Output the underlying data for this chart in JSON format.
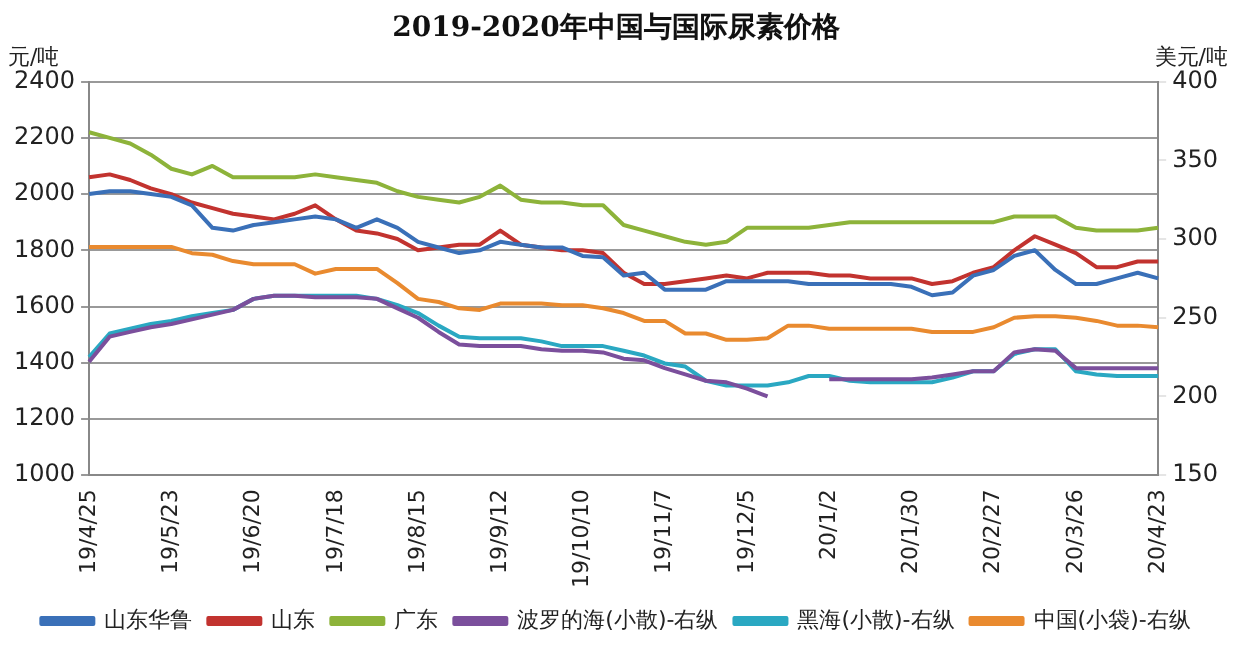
{
  "chart_data": {
    "type": "line",
    "title": "2019-2020年中国与国际尿素价格",
    "ylabel": "元/吨",
    "y2label": "美元/吨",
    "categories": [
      "19/4/25",
      null,
      null,
      null,
      "19/5/23",
      null,
      null,
      null,
      "19/6/20",
      null,
      null,
      null,
      "19/7/18",
      null,
      null,
      null,
      "19/8/15",
      null,
      null,
      null,
      "19/9/12",
      null,
      null,
      null,
      "19/10/10",
      null,
      null,
      null,
      "19/11/7",
      null,
      null,
      null,
      "19/12/5",
      null,
      null,
      null,
      "20/1/2",
      null,
      null,
      null,
      "20/1/30",
      null,
      null,
      null,
      "20/2/27",
      null,
      null,
      null,
      "20/3/26",
      null,
      null,
      null,
      "20/4/23"
    ],
    "series": [
      {
        "name": "山东华鲁",
        "color": "#3a70b8",
        "values": [
          2000,
          2010,
          2010,
          2000,
          1990,
          1960,
          1880,
          1870,
          1890,
          1900,
          1910,
          1920,
          1910,
          1880,
          1910,
          1880,
          1830,
          1810,
          1790,
          1800,
          1830,
          1820,
          1810,
          1810,
          1780,
          1775,
          1710,
          1720,
          1660,
          1660,
          1660,
          1690,
          1690,
          1690,
          1690,
          1680,
          1680,
          1680,
          1680,
          1680,
          1670,
          1640,
          1650,
          1710,
          1730,
          1780,
          1800,
          1730,
          1680,
          1680,
          1700,
          1720,
          1700
        ]
      },
      {
        "name": "山东",
        "color": "#c2332f",
        "values": [
          2060,
          2070,
          2050,
          2020,
          2000,
          1970,
          1950,
          1930,
          1920,
          1910,
          1930,
          1960,
          1910,
          1870,
          1860,
          1840,
          1800,
          1810,
          1820,
          1820,
          1870,
          1820,
          1810,
          1800,
          1800,
          1790,
          1720,
          1680,
          1680,
          1690,
          1700,
          1710,
          1700,
          1720,
          1720,
          1720,
          1710,
          1710,
          1700,
          1700,
          1700,
          1680,
          1690,
          1720,
          1740,
          1800,
          1850,
          1820,
          1790,
          1740,
          1740,
          1760,
          1760
        ]
      },
      {
        "name": "广东",
        "color": "#8db33a",
        "values": [
          2220,
          2200,
          2180,
          2140,
          2090,
          2070,
          2100,
          2060,
          2060,
          2060,
          2060,
          2070,
          2060,
          2050,
          2040,
          2010,
          1990,
          1980,
          1970,
          1990,
          2030,
          1980,
          1970,
          1970,
          1960,
          1960,
          1890,
          1870,
          1850,
          1830,
          1820,
          1830,
          1880,
          1880,
          1880,
          1880,
          1890,
          1900,
          1900,
          1900,
          1900,
          1900,
          1900,
          1900,
          1900,
          1920,
          1920,
          1920,
          1880,
          1870,
          1870,
          1870,
          1880
        ]
      },
      {
        "name": "波罗的海(小散)-右纵",
        "color": "#7b4f9c",
        "axis": "y2",
        "values": [
          222,
          238,
          241,
          244,
          246,
          249,
          252,
          255,
          262,
          264,
          264,
          263,
          263,
          263,
          262,
          256,
          250,
          241,
          233,
          232,
          232,
          232,
          230,
          229,
          229,
          228,
          224,
          223,
          218,
          214,
          210,
          209,
          205,
          200,
          null,
          null,
          211,
          211,
          211,
          211,
          211,
          212,
          214,
          216,
          216,
          228,
          230,
          229,
          218,
          218,
          218,
          218,
          218
        ]
      },
      {
        "name": "黑海(小散)-右纵",
        "color": "#2aa8c2",
        "axis": "y2",
        "values": [
          225,
          240,
          243,
          246,
          248,
          251,
          253,
          255,
          262,
          264,
          264,
          264,
          264,
          264,
          262,
          258,
          253,
          245,
          238,
          237,
          237,
          237,
          235,
          232,
          232,
          232,
          229,
          226,
          221,
          219,
          210,
          207,
          207,
          207,
          209,
          213,
          213,
          210,
          209,
          209,
          209,
          209,
          212,
          216,
          216,
          227,
          230,
          230,
          216,
          214,
          213,
          213,
          213
        ]
      },
      {
        "name": "中国(小袋)-右纵",
        "color": "#e98a2f",
        "axis": "y2",
        "values": [
          295,
          295,
          295,
          295,
          295,
          291,
          290,
          286,
          284,
          284,
          284,
          278,
          281,
          281,
          281,
          272,
          262,
          260,
          256,
          255,
          259,
          259,
          259,
          258,
          258,
          256,
          253,
          248,
          248,
          240,
          240,
          236,
          236,
          237,
          245,
          245,
          243,
          243,
          243,
          243,
          243,
          241,
          241,
          241,
          244,
          250,
          251,
          251,
          250,
          248,
          245,
          245,
          244
        ]
      }
    ],
    "ylim": [
      1000,
      2400
    ],
    "yticks": [
      1000,
      1200,
      1400,
      1600,
      1800,
      2000,
      2200,
      2400
    ],
    "y2lim": [
      150,
      400
    ],
    "y2ticks": [
      150,
      200,
      250,
      300,
      350,
      400
    ],
    "grid": "y",
    "legend": "bottom"
  }
}
